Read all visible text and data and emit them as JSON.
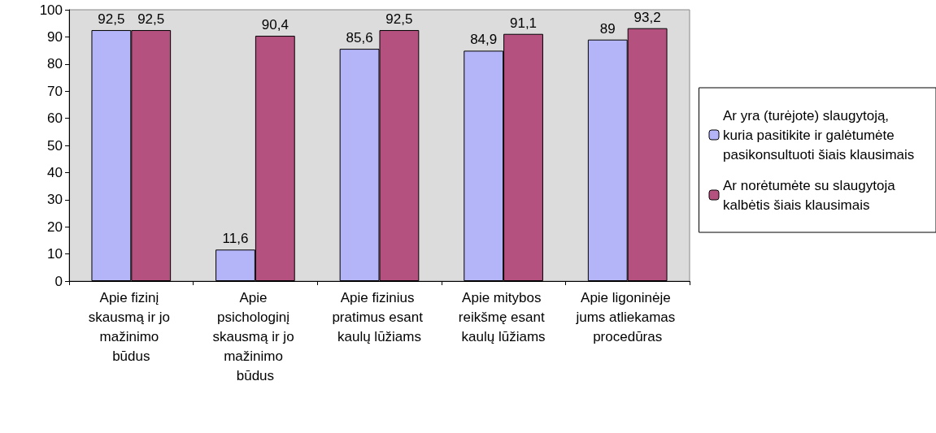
{
  "chart_data": {
    "type": "bar",
    "categories": [
      "Apie fizinį skausmą ir jo mažinimo būdus",
      "Apie psichologinį skausmą ir jo mažinimo būdus",
      "Apie fizinius pratimus esant kaulų lūžiams",
      "Apie mitybos reikšmę esant kaulų lūžiams",
      "Apie ligoninėje jums atliekamas procedūras"
    ],
    "series": [
      {
        "name": "Ar yra (turėjote) slaugytoją, kuria pasitikite ir galėtumėte pasikonsultuoti šiais klausimais",
        "color": "#b4b4f8",
        "values": [
          92.5,
          11.6,
          85.6,
          84.9,
          89
        ],
        "value_labels": [
          "92,5",
          "11,6",
          "85,6",
          "84,9",
          "89"
        ]
      },
      {
        "name": "Ar norėtumėte su slaugytoja kalbėtis šiais klausimais",
        "color": "#b5517f",
        "values": [
          92.5,
          90.4,
          92.5,
          91.1,
          93.2
        ],
        "value_labels": [
          "92,5",
          "90,4",
          "92,5",
          "91,1",
          "93,2"
        ]
      }
    ],
    "ylim": [
      0,
      100
    ],
    "yticks": [
      0,
      10,
      20,
      30,
      40,
      50,
      60,
      70,
      80,
      90,
      100
    ],
    "grid": false,
    "legend": "right"
  }
}
